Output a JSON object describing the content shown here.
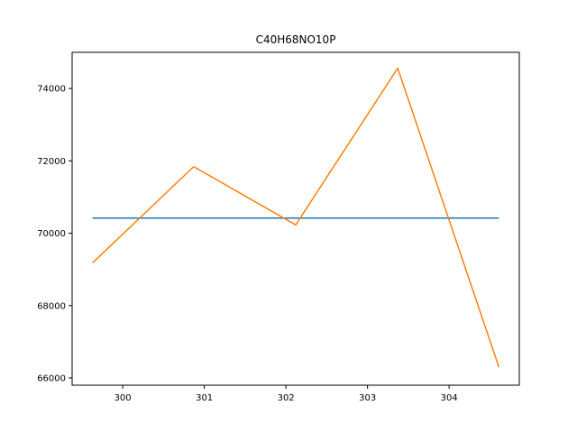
{
  "chart_data": {
    "type": "line",
    "title": "C40H68NO10P",
    "xlabel": "",
    "ylabel": "",
    "xlim": [
      299.38,
      304.86
    ],
    "ylim": [
      65800,
      75000
    ],
    "x_ticks": [
      300,
      301,
      302,
      303,
      304
    ],
    "y_ticks": [
      66000,
      68000,
      70000,
      72000,
      74000
    ],
    "grid": false,
    "series": [
      {
        "color": "#1f77b4",
        "x": [
          299.63,
          304.61
        ],
        "y": [
          70420,
          70420
        ]
      },
      {
        "color": "#ff7f0e",
        "x": [
          299.63,
          300.87,
          302.12,
          303.37,
          304.61
        ],
        "y": [
          69180,
          71840,
          70230,
          74560,
          66300
        ]
      }
    ]
  }
}
